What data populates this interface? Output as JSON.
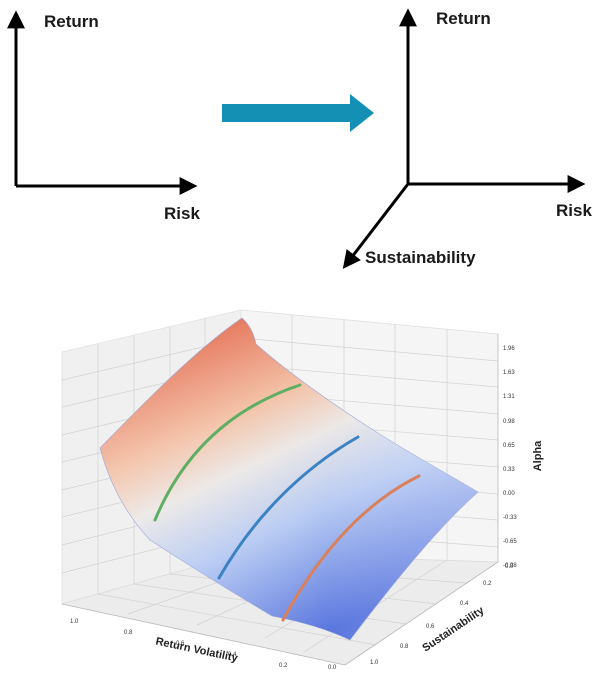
{
  "top_left_diagram": {
    "y_label": "Return",
    "x_label": "Risk"
  },
  "top_right_diagram": {
    "y_label": "Return",
    "x_label": "Risk",
    "z_label": "Sustainability"
  },
  "colors": {
    "arrow": "#1590b5",
    "surface_high": "#c8423e",
    "surface_mid": "#ece8e6",
    "surface_low": "#5a77df",
    "curve_green": "#5fae63",
    "curve_blue": "#3b82c4",
    "curve_orange": "#d9805c"
  },
  "chart_data": {
    "type": "surface",
    "xlabel": "Return Volatility",
    "ylabel": "Sustainability",
    "zlabel": "Alpha",
    "x_ticks": [
      "1.0",
      "0.8",
      "0.6",
      "0.4",
      "0.2",
      "0.0"
    ],
    "y_ticks": [
      "0.0",
      "0.2",
      "0.4",
      "0.6",
      "0.8",
      "1.0"
    ],
    "z_ticks": [
      "1.96",
      "1.63",
      "1.31",
      "0.98",
      "0.65",
      "0.33",
      "0.00",
      "-0.33",
      "-0.65",
      "-0.98"
    ],
    "zlim": [
      -0.98,
      1.96
    ]
  }
}
